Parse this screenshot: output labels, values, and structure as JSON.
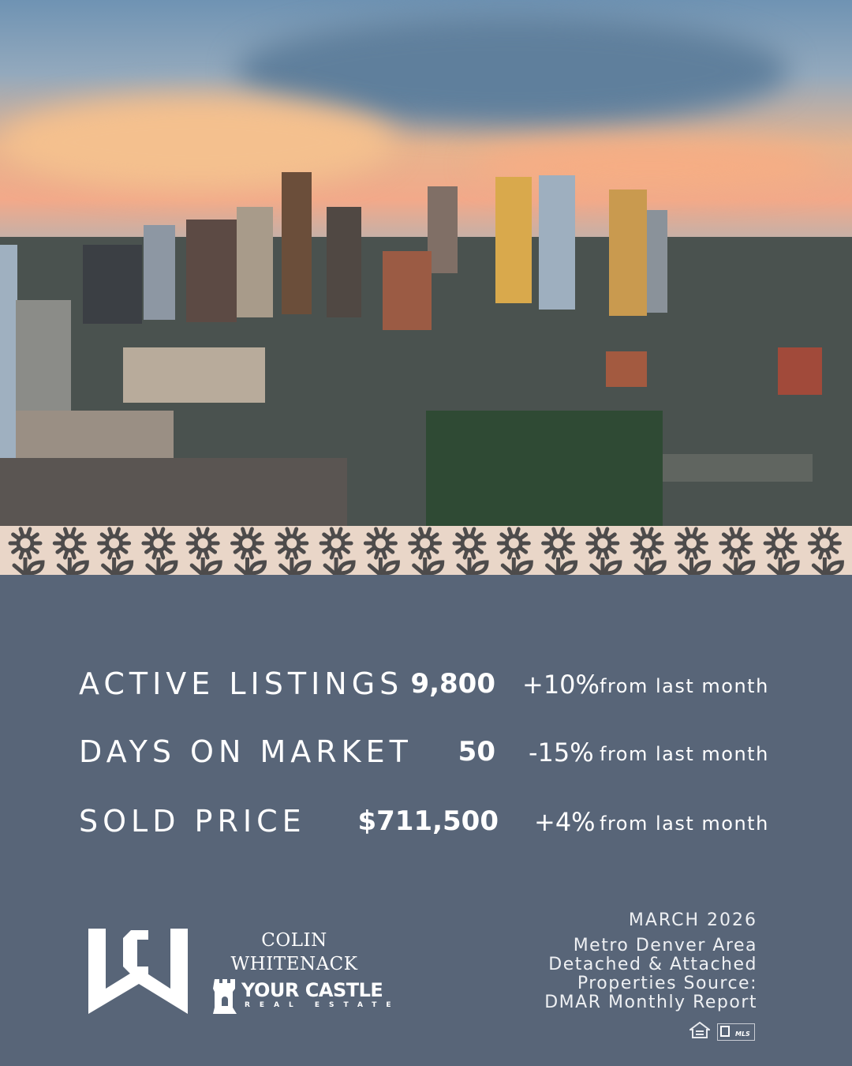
{
  "colors": {
    "background": "#586578",
    "band": "#e9d6c8",
    "flower": "#4d4b4b",
    "text": "#ffffff"
  },
  "hero_image": {
    "icon": "denver-skyline-photo"
  },
  "stats": [
    {
      "label": "ACTIVE LISTINGS",
      "value": "9,800",
      "change": "+10%",
      "suffix": "from last month"
    },
    {
      "label": "DAYS ON MARKET",
      "value": "50",
      "change": "-15%",
      "suffix": "from last month"
    },
    {
      "label": "SOLD PRICE",
      "value": "$711,500",
      "change": "+4%",
      "suffix": "from last month"
    }
  ],
  "brand": {
    "monogram": "CW",
    "name_line1": "COLIN",
    "name_line2": "WHITENACK",
    "company": "YOUR CASTLE",
    "company_sub": "REAL ESTATE"
  },
  "report": {
    "date": "MARCH 2026",
    "line1": "Metro Denver Area",
    "line2": "Detached & Attached",
    "line3": "Properties Source:",
    "line4": "DMAR Monthly Report"
  },
  "badges": {
    "equal_housing": "equal-housing-icon",
    "realtor_mls": "MLS"
  }
}
